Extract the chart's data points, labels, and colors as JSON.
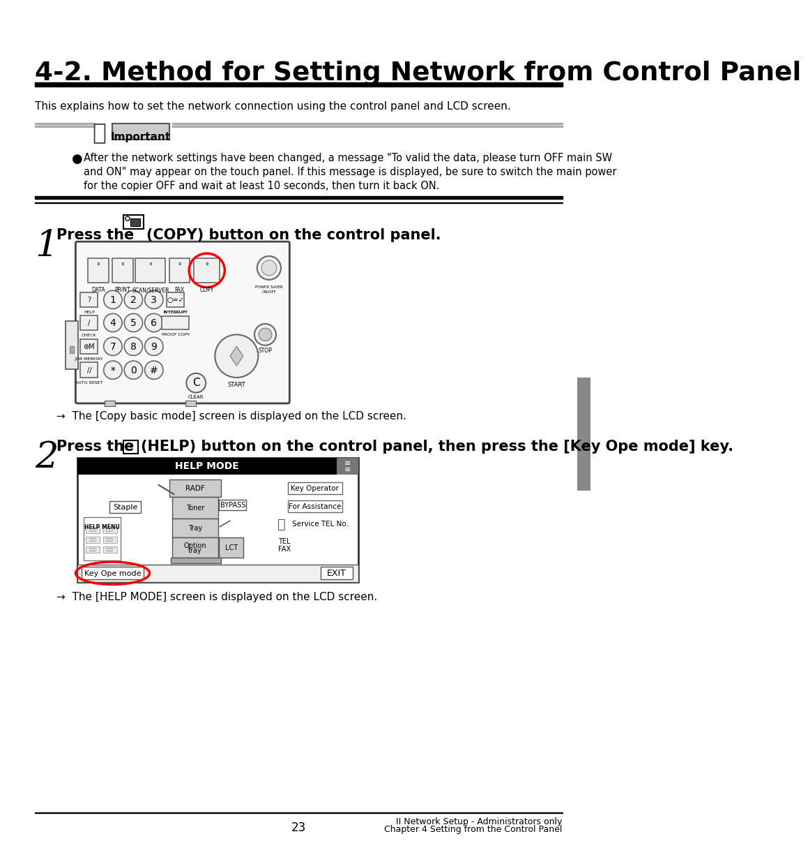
{
  "title": "4-2. Method for Setting Network from Control Panel",
  "subtitle": "This explains how to set the network connection using the control panel and LCD screen.",
  "important_text_line1": "After the network settings have been changed, a message \"To valid the data, please turn OFF main SW",
  "important_text_line2": "and ON\" may appear on the touch panel. If this message is displayed, be sure to switch the main power",
  "important_text_line3": "for the copier OFF and wait at least 10 seconds, then turn it back ON.",
  "step1_result": "→  The [Copy basic mode] screen is displayed on the LCD screen.",
  "step2_result": "→  The [HELP MODE] screen is displayed on the LCD screen.",
  "page_number": "23",
  "footer_right1": "II Network Setup - Administrators only",
  "footer_right2": "Chapter 4 Setting from the Control Panel",
  "bg_color": "#ffffff",
  "title_color": "#000000",
  "text_color": "#000000"
}
